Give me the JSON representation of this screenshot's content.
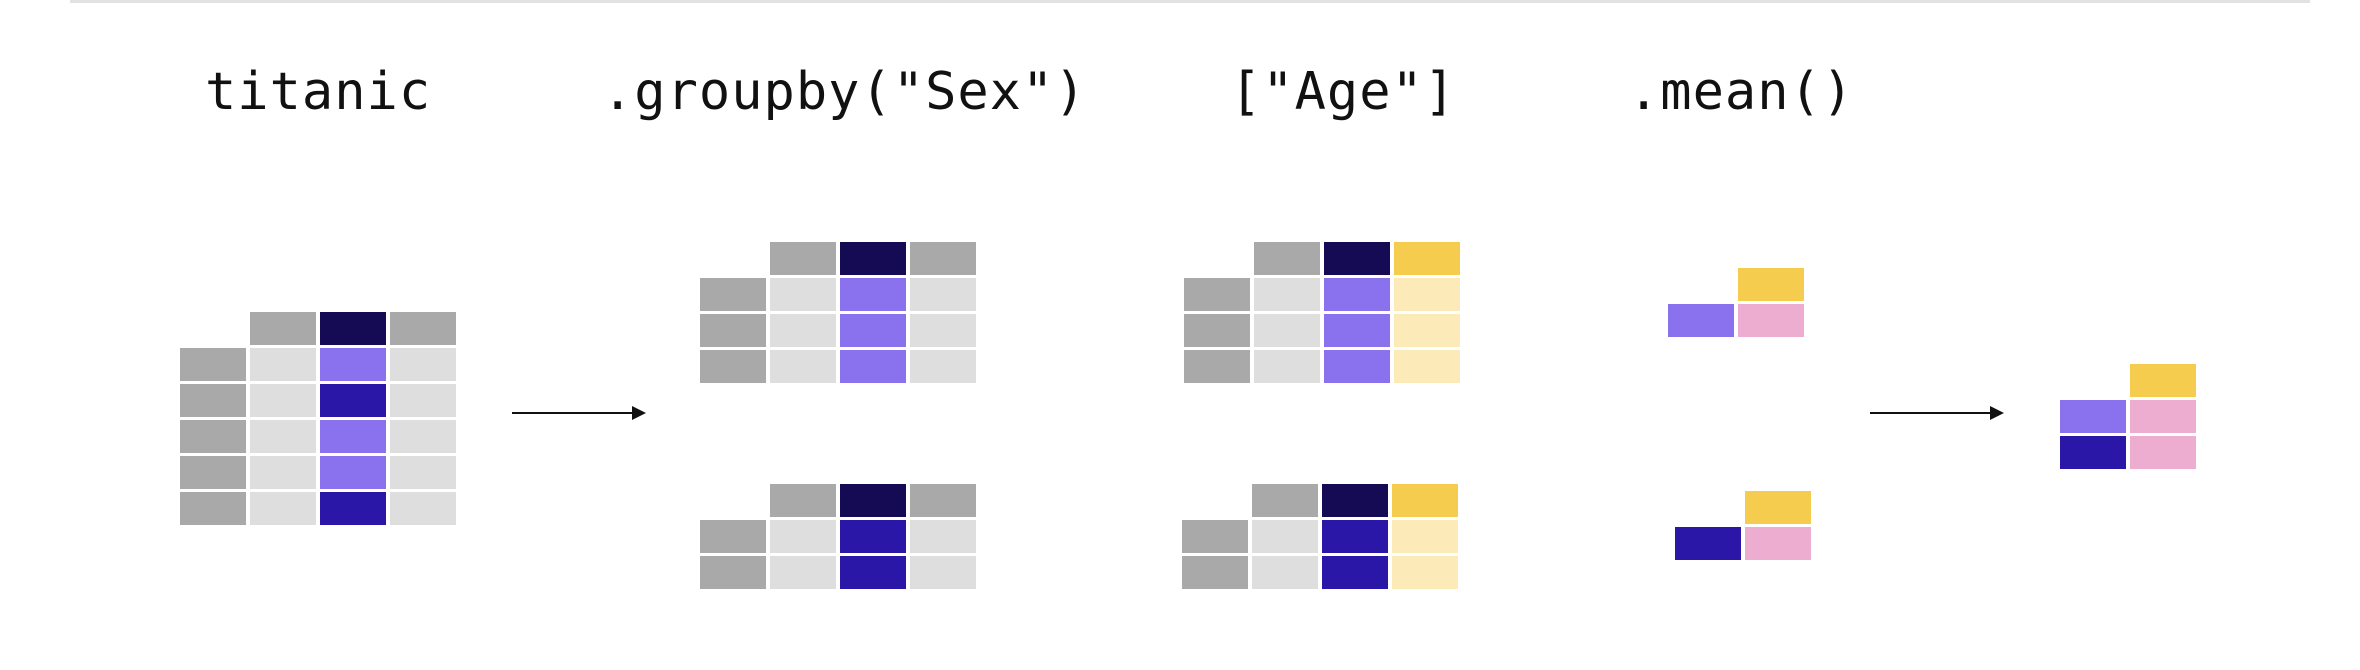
{
  "labels": {
    "titanic": "titanic",
    "groupby": ".groupby(\"Sex\")",
    "age": "[\"Age\"]",
    "mean": ".mean()"
  },
  "colors": {
    "index_gray": "#a9a9a9",
    "cell_light": "#dedede",
    "column_header_dark": "#140b54",
    "value_lavender": "#8a72ef",
    "value_indigo": "#2a17a8",
    "age_header_yellow": "#f6cc4e",
    "age_value_pale_yellow": "#fcebb8",
    "mean_pink": "#ecadd0",
    "arrow": "#111111",
    "top_rule": "#e2e2e2"
  }
}
